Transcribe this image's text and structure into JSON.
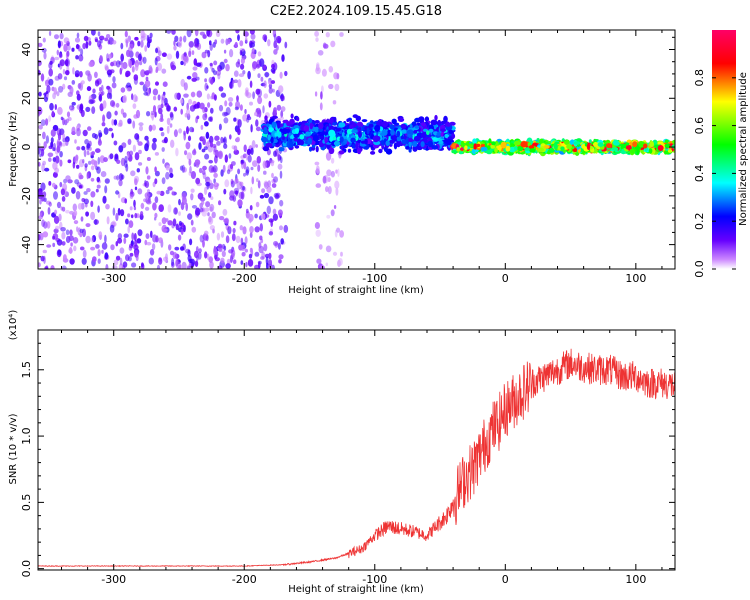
{
  "title": "C2E2.2024.109.15.45.G18",
  "chart_data": [
    {
      "type": "heatmap",
      "xlabel": "Height of straight line (km)",
      "ylabel": "Frequency (Hz)",
      "xlim": [
        -358,
        130
      ],
      "ylim": [
        -50,
        48
      ],
      "xticks": [
        -300,
        -200,
        -100,
        0,
        100
      ],
      "yticks": [
        -40,
        -20,
        0,
        20,
        40
      ],
      "colorbar": {
        "label": "Normalized spectral amplitude",
        "range": [
          0.0,
          1.0
        ],
        "ticks": [
          0.0,
          0.2,
          0.4,
          0.6,
          0.8
        ],
        "tick_labels": [
          "0.0",
          "0.2",
          "0.4",
          "0.6",
          "0.8"
        ],
        "colors": [
          "#ffffff",
          "#cc88ff",
          "#6600ff",
          "#0000ff",
          "#00ffff",
          "#00ff00",
          "#ffff00",
          "#ff0000",
          "#ff0066"
        ]
      },
      "regions": [
        {
          "x_range": [
            -358,
            -168
          ],
          "frequency_range": [
            -50,
            48
          ],
          "level": 0.1,
          "pattern": "scattered noise"
        },
        {
          "x_range": [
            -145,
            -125
          ],
          "frequency_range": [
            -50,
            48
          ],
          "level": 0.05,
          "pattern": "scattered noise"
        },
        {
          "x_range": [
            -185,
            -40
          ],
          "frequency_center": 5,
          "frequency_halfwidth": 8,
          "level": 0.3,
          "pattern": "band"
        },
        {
          "x_range": [
            -40,
            130
          ],
          "frequency_center": 0,
          "frequency_halfwidth": 3,
          "level": 0.75,
          "pattern": "band"
        }
      ]
    },
    {
      "type": "line",
      "xlabel": "Height of straight line (km)",
      "ylabel": "SNR (10 * v/v)",
      "y_multiplier": "(x10⁴)",
      "xlim": [
        -358,
        130
      ],
      "ylim": [
        -0.01,
        1.8
      ],
      "xticks": [
        -300,
        -200,
        -100,
        0,
        100
      ],
      "yticks": [
        0.0,
        0.5,
        1.0,
        1.5
      ],
      "ytick_labels": [
        "0.0",
        "0.5",
        "1.0",
        "1.5"
      ],
      "color": "#ee3333",
      "series": [
        {
          "x": [
            -358,
            -300,
            -250,
            -200,
            -170,
            -150,
            -130,
            -110,
            -100,
            -90,
            -80,
            -70,
            -60,
            -50,
            -45,
            -40,
            -35,
            -30,
            -25,
            -20,
            -15,
            -10,
            -5,
            0,
            10,
            20,
            30,
            40,
            50,
            60,
            70,
            80,
            90,
            100,
            110,
            120,
            130
          ],
          "values": [
            0.02,
            0.02,
            0.02,
            0.02,
            0.03,
            0.05,
            0.08,
            0.15,
            0.25,
            0.32,
            0.3,
            0.28,
            0.25,
            0.35,
            0.4,
            0.5,
            0.6,
            0.7,
            0.75,
            0.85,
            0.95,
            1.05,
            1.1,
            1.2,
            1.3,
            1.4,
            1.45,
            1.5,
            1.55,
            1.52,
            1.5,
            1.5,
            1.45,
            1.45,
            1.4,
            1.4,
            1.38
          ]
        }
      ]
    }
  ]
}
